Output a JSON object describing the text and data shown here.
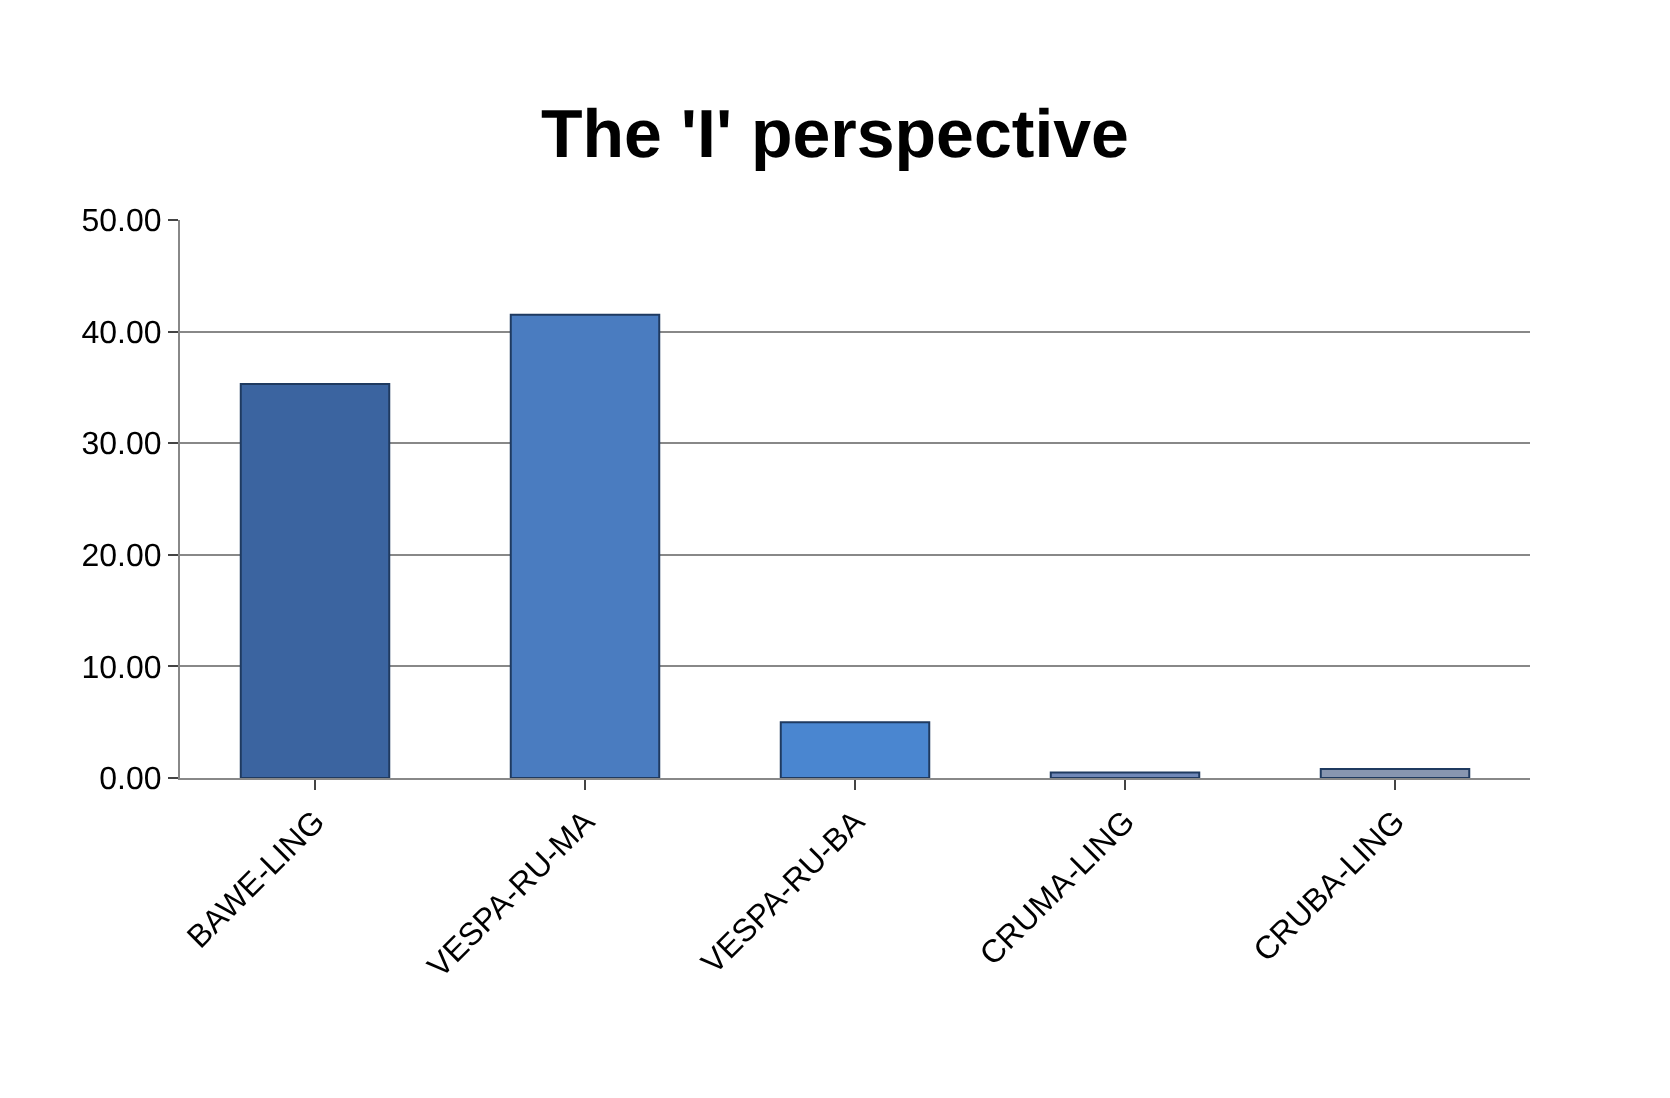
{
  "chart_data": {
    "type": "bar",
    "title": "The 'I' perspective",
    "categories": [
      "BAWE-LING",
      "VESPA-RU-MA",
      "VESPA-RU-BA",
      "CRUMA-LING",
      "CRUBA-LING"
    ],
    "values": [
      35.3,
      41.5,
      5.0,
      0.5,
      0.8
    ],
    "colors": [
      "#3b64a0",
      "#4a7cc0",
      "#4a86d0",
      "#7088b8",
      "#8896b0"
    ],
    "ylim": [
      0,
      50
    ],
    "yticks": [
      {
        "value": 0,
        "label": "0.00"
      },
      {
        "value": 10,
        "label": "10.00"
      },
      {
        "value": 20,
        "label": "20.00"
      },
      {
        "value": 30,
        "label": "30.00"
      },
      {
        "value": 40,
        "label": "40.00"
      },
      {
        "value": 50,
        "label": "50.00"
      }
    ],
    "grid": "y"
  }
}
